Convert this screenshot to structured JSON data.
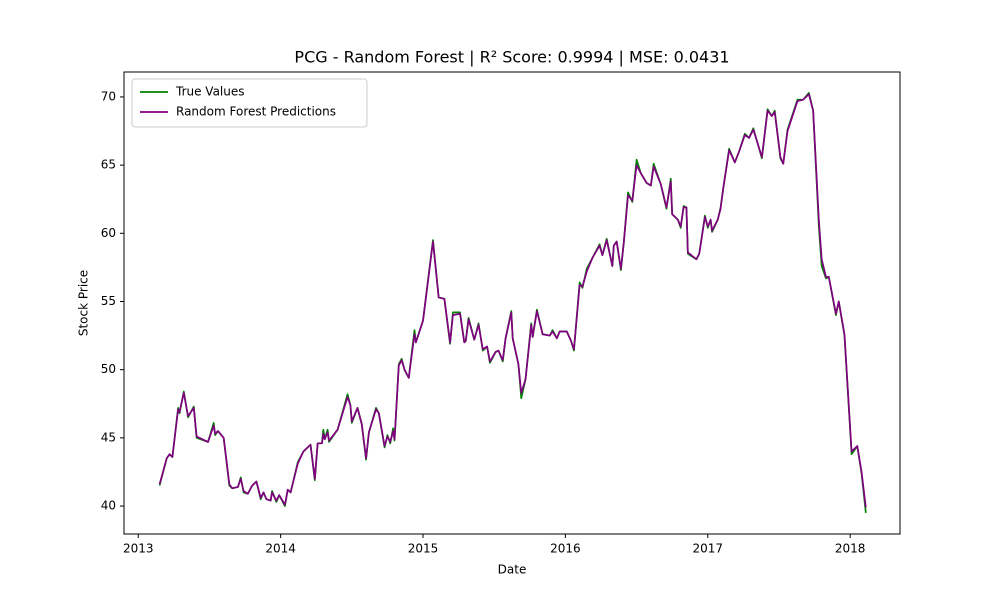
{
  "chart_data": {
    "type": "line",
    "title": "PCG - Random Forest | R² Score: 0.9994 | MSE: 0.0431",
    "x_label": "Date",
    "y_label": "Stock Price",
    "x": [
      2013.15,
      2013.2,
      2013.22,
      2013.24,
      2013.28,
      2013.29,
      2013.32,
      2013.35,
      2013.39,
      2013.41,
      2013.49,
      2013.53,
      2013.54,
      2013.56,
      2013.6,
      2013.64,
      2013.66,
      2013.7,
      2013.72,
      2013.74,
      2013.77,
      2013.8,
      2013.83,
      2013.86,
      2013.88,
      2013.9,
      2013.93,
      2013.94,
      2013.97,
      2013.99,
      2014.03,
      2014.05,
      2014.07,
      2014.12,
      2014.16,
      2014.21,
      2014.24,
      2014.26,
      2014.29,
      2014.3,
      2014.31,
      2014.33,
      2014.34,
      2014.4,
      2014.47,
      2014.49,
      2014.5,
      2014.54,
      2014.57,
      2014.6,
      2014.62,
      2014.67,
      2014.69,
      2014.73,
      2014.75,
      2014.77,
      2014.79,
      2014.8,
      2014.83,
      2014.85,
      2014.87,
      2014.9,
      2014.94,
      2014.95,
      2015.0,
      2015.07,
      2015.11,
      2015.15,
      2015.19,
      2015.21,
      2015.26,
      2015.29,
      2015.3,
      2015.32,
      2015.36,
      2015.39,
      2015.42,
      2015.45,
      2015.47,
      2015.51,
      2015.53,
      2015.56,
      2015.58,
      2015.62,
      2015.63,
      2015.67,
      2015.69,
      2015.72,
      2015.76,
      2015.77,
      2015.8,
      2015.84,
      2015.89,
      2015.91,
      2015.94,
      2015.96,
      2016.01,
      2016.04,
      2016.06,
      2016.1,
      2016.12,
      2016.15,
      2016.19,
      2016.24,
      2016.26,
      2016.29,
      2016.33,
      2016.34,
      2016.36,
      2016.39,
      2016.41,
      2016.44,
      2016.47,
      2016.5,
      2016.53,
      2016.57,
      2016.6,
      2016.62,
      2016.67,
      2016.71,
      2016.74,
      2016.75,
      2016.79,
      2016.81,
      2016.83,
      2016.85,
      2016.86,
      2016.92,
      2016.94,
      2016.98,
      2017.0,
      2017.02,
      2017.03,
      2017.07,
      2017.09,
      2017.11,
      2017.15,
      2017.19,
      2017.22,
      2017.26,
      2017.29,
      2017.32,
      2017.38,
      2017.42,
      2017.45,
      2017.47,
      2017.51,
      2017.53,
      2017.56,
      2017.63,
      2017.67,
      2017.71,
      2017.74,
      2017.78,
      2017.8,
      2017.83,
      2017.85,
      2017.9,
      2017.92,
      2017.96,
      2018.01,
      2018.05,
      2018.08,
      2018.11
    ],
    "series": [
      {
        "name": "True Values",
        "color": "#008000",
        "values": [
          41.5,
          43.5,
          43.8,
          43.6,
          47.2,
          46.8,
          48.4,
          46.5,
          47.3,
          45.0,
          44.7,
          46.1,
          45.2,
          45.5,
          45.0,
          41.5,
          41.3,
          41.4,
          42.1,
          41.0,
          40.9,
          41.5,
          41.8,
          40.5,
          41.0,
          40.5,
          40.4,
          41.1,
          40.3,
          40.8,
          40.0,
          41.2,
          41.0,
          43.2,
          44.0,
          44.5,
          41.9,
          44.6,
          44.6,
          45.6,
          44.9,
          45.6,
          44.7,
          45.6,
          48.2,
          47.4,
          46.1,
          47.2,
          46.0,
          43.4,
          45.4,
          47.2,
          46.8,
          44.3,
          45.2,
          44.6,
          45.7,
          44.8,
          50.4,
          50.8,
          50.0,
          49.4,
          52.9,
          52.0,
          53.6,
          59.5,
          55.3,
          55.2,
          51.9,
          54.2,
          54.2,
          52.0,
          52.1,
          53.8,
          52.2,
          53.4,
          51.4,
          51.7,
          50.5,
          51.3,
          51.4,
          50.6,
          52.3,
          54.3,
          52.3,
          50.4,
          47.9,
          49.3,
          53.4,
          52.4,
          54.4,
          52.6,
          52.5,
          52.9,
          52.3,
          52.8,
          52.8,
          52.1,
          51.4,
          56.4,
          56.0,
          57.4,
          58.2,
          59.2,
          58.4,
          59.6,
          57.6,
          59.1,
          59.4,
          57.3,
          59.3,
          63.0,
          62.3,
          65.4,
          64.4,
          63.7,
          63.5,
          65.1,
          63.6,
          61.8,
          64.0,
          61.4,
          61.0,
          60.4,
          62.0,
          61.9,
          58.5,
          58.1,
          58.5,
          61.3,
          60.4,
          61.0,
          60.1,
          61.0,
          61.9,
          63.4,
          66.2,
          65.2,
          66.0,
          67.3,
          67.0,
          67.7,
          65.5,
          69.1,
          68.6,
          69.0,
          65.5,
          65.1,
          67.6,
          69.8,
          69.8,
          70.3,
          69.0,
          60.5,
          57.6,
          56.7,
          56.8,
          54.0,
          55.0,
          52.5,
          43.8,
          44.4,
          42.4,
          39.5
        ]
      },
      {
        "name": "Random Forest Predictions",
        "color": "#800080",
        "values": [
          41.6,
          43.5,
          43.8,
          43.6,
          47.1,
          46.9,
          48.3,
          46.6,
          47.2,
          45.1,
          44.7,
          45.9,
          45.3,
          45.5,
          45.0,
          41.6,
          41.3,
          41.4,
          42.0,
          41.1,
          40.9,
          41.5,
          41.8,
          40.6,
          41.0,
          40.5,
          40.4,
          41.0,
          40.4,
          40.8,
          40.1,
          41.2,
          41.0,
          43.1,
          44.0,
          44.5,
          42.0,
          44.6,
          44.6,
          45.3,
          44.9,
          45.4,
          44.8,
          45.6,
          48.0,
          47.4,
          46.2,
          47.2,
          46.0,
          43.5,
          45.4,
          47.1,
          46.8,
          44.4,
          45.1,
          44.7,
          45.5,
          44.9,
          50.3,
          50.7,
          50.0,
          49.4,
          52.6,
          52.0,
          53.6,
          59.4,
          55.3,
          55.2,
          52.0,
          54.0,
          54.1,
          52.0,
          52.1,
          53.7,
          52.2,
          53.3,
          51.5,
          51.7,
          50.6,
          51.3,
          51.4,
          50.7,
          52.3,
          54.2,
          52.3,
          50.4,
          48.3,
          49.3,
          53.3,
          52.4,
          54.3,
          52.6,
          52.5,
          52.8,
          52.3,
          52.8,
          52.8,
          52.1,
          51.5,
          56.2,
          56.1,
          57.2,
          58.2,
          59.1,
          58.4,
          59.5,
          57.6,
          59.1,
          59.4,
          57.4,
          59.3,
          62.8,
          62.4,
          65.0,
          64.4,
          63.7,
          63.5,
          64.9,
          63.6,
          61.9,
          63.8,
          61.4,
          61.0,
          60.5,
          61.9,
          61.9,
          58.6,
          58.1,
          58.5,
          61.2,
          60.5,
          61.0,
          60.2,
          61.0,
          61.8,
          63.4,
          66.1,
          65.2,
          66.0,
          67.2,
          67.0,
          67.6,
          65.6,
          69.0,
          68.6,
          68.9,
          65.6,
          65.1,
          67.5,
          69.7,
          69.8,
          70.2,
          69.0,
          61.0,
          58.1,
          56.8,
          56.8,
          54.1,
          55.0,
          52.6,
          44.0,
          44.4,
          42.5,
          39.9
        ]
      }
    ],
    "xlim": [
      2012.9,
      2018.35
    ],
    "ylim": [
      37.95,
      71.83
    ],
    "xticks": [
      2013,
      2014,
      2015,
      2016,
      2017,
      2018
    ],
    "yticks": [
      40,
      45,
      50,
      55,
      60,
      65,
      70
    ],
    "legend": "upper left"
  }
}
